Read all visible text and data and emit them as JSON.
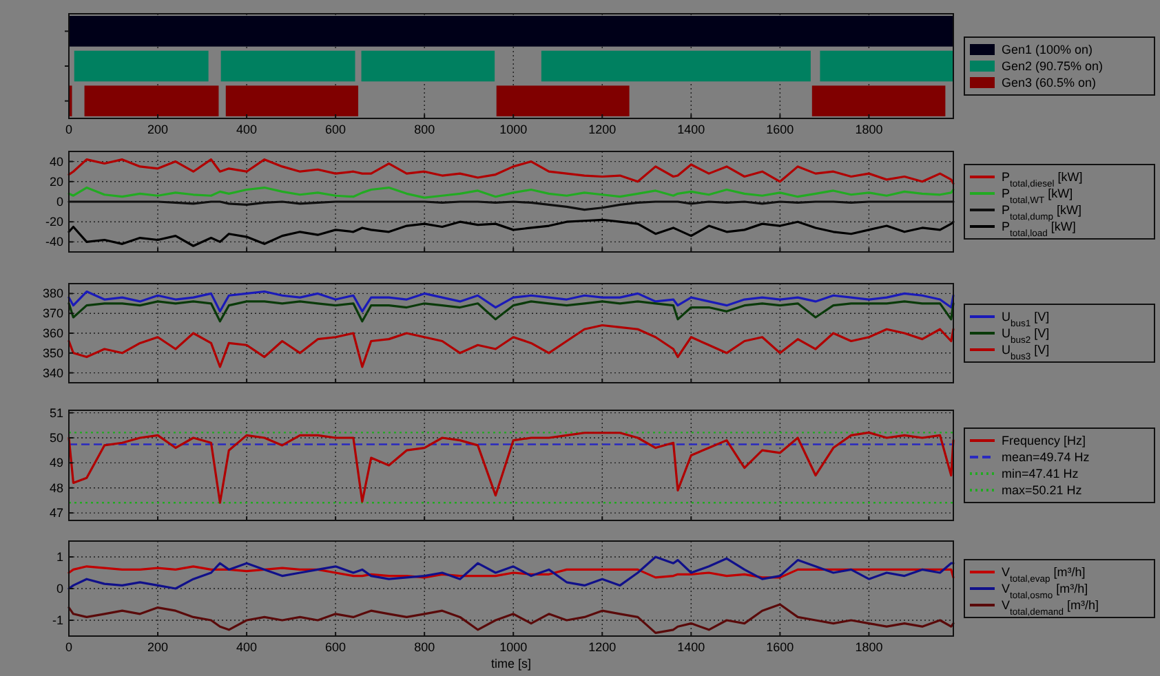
{
  "chart_data": [
    {
      "type": "bar",
      "orientation": "horizontal",
      "categories": [
        null,
        null,
        null
      ],
      "xlim": [
        0,
        1990
      ],
      "xticks": [
        0,
        200,
        400,
        600,
        800,
        1000,
        1200,
        1400,
        1600,
        1800
      ],
      "grid": "x",
      "tick_labels": "x",
      "legend": "right",
      "series": [
        {
          "name": "Gen1 (100% on)",
          "color": "#000018",
          "values": [
            1990,
            null,
            null
          ],
          "base": [
            0,
            null,
            null
          ]
        },
        {
          "name": "Gen2 (90.75% on)",
          "color": "#008060",
          "values": [
            null,
            302,
            null
          ],
          "base": [
            null,
            12,
            null
          ]
        },
        {
          "color": "#008060",
          "values": [
            null,
            302,
            null
          ],
          "base": [
            null,
            342,
            null
          ]
        },
        {
          "color": "#008060",
          "values": [
            null,
            300,
            null
          ],
          "base": [
            null,
            658,
            null
          ]
        },
        {
          "color": "#008060",
          "values": [
            null,
            606,
            null
          ],
          "base": [
            null,
            1063,
            null
          ]
        },
        {
          "color": "#008060",
          "values": [
            null,
            300,
            null
          ],
          "base": [
            null,
            1690,
            null
          ]
        },
        {
          "name": "Gen3 (60.5% on)",
          "color": "#800000",
          "values": [
            null,
            null,
            7
          ],
          "base": [
            null,
            null,
            0
          ]
        },
        {
          "color": "#800000",
          "values": [
            null,
            null,
            302
          ],
          "base": [
            null,
            null,
            35
          ]
        },
        {
          "color": "#800000",
          "values": [
            null,
            null,
            298
          ],
          "base": [
            null,
            null,
            353
          ]
        },
        {
          "color": "#800000",
          "values": [
            null,
            null,
            299
          ],
          "base": [
            null,
            null,
            962
          ]
        },
        {
          "color": "#800000",
          "values": [
            null,
            null,
            300
          ],
          "base": [
            null,
            null,
            1672
          ]
        }
      ]
    },
    {
      "type": "line",
      "x": [
        0,
        10,
        40,
        80,
        120,
        160,
        200,
        240,
        280,
        320,
        340,
        360,
        400,
        440,
        480,
        520,
        560,
        600,
        640,
        660,
        680,
        720,
        760,
        800,
        840,
        880,
        920,
        960,
        1000,
        1040,
        1080,
        1120,
        1160,
        1200,
        1240,
        1280,
        1320,
        1360,
        1370,
        1400,
        1440,
        1480,
        1520,
        1560,
        1600,
        1640,
        1680,
        1720,
        1760,
        1800,
        1840,
        1880,
        1920,
        1960,
        1985,
        1990
      ],
      "xlim": [
        0,
        1990
      ],
      "xticks": [
        0,
        200,
        400,
        600,
        800,
        1000,
        1200,
        1400,
        1600,
        1800
      ],
      "ylim": [
        -50,
        50
      ],
      "yticks": [
        -40,
        -20,
        0,
        20,
        40
      ],
      "grid": true,
      "tick_labels": "y",
      "legend": "right",
      "series": [
        {
          "name": "P$_{total,diesel}$ [kW]",
          "color": "#b00000",
          "values": [
            27,
            30,
            42,
            38,
            42,
            35,
            33,
            40,
            30,
            42,
            30,
            33,
            30,
            42,
            35,
            30,
            32,
            28,
            30,
            28,
            28,
            38,
            28,
            30,
            26,
            28,
            24,
            27,
            35,
            40,
            30,
            28,
            26,
            25,
            26,
            20,
            35,
            25,
            26,
            37,
            28,
            35,
            25,
            30,
            20,
            35,
            28,
            30,
            25,
            28,
            22,
            25,
            20,
            28,
            22,
            18
          ]
        },
        {
          "name": "P$_{total,WT}$ [kW]",
          "color": "#22aa22",
          "values": [
            8,
            6,
            14,
            7,
            5,
            8,
            6,
            9,
            7,
            6,
            10,
            8,
            12,
            14,
            10,
            7,
            9,
            6,
            5,
            9,
            12,
            14,
            8,
            4,
            6,
            8,
            11,
            5,
            9,
            12,
            8,
            6,
            9,
            7,
            5,
            8,
            11,
            6,
            8,
            10,
            7,
            12,
            8,
            6,
            9,
            5,
            8,
            11,
            7,
            9,
            6,
            10,
            8,
            7,
            9,
            12
          ]
        },
        {
          "name": "P$_{total,dump}$ [kW]",
          "color": "#101010",
          "values": [
            0,
            0,
            0,
            0,
            0,
            0,
            0,
            -1,
            -2,
            0,
            0,
            -2,
            -3,
            -1,
            0,
            -2,
            -1,
            0,
            0,
            0,
            0,
            0,
            0,
            0,
            -1,
            0,
            0,
            -1,
            0,
            -1,
            -3,
            -5,
            -8,
            -6,
            -3,
            -1,
            0,
            0,
            0,
            -2,
            0,
            -1,
            0,
            -2,
            0,
            -1,
            0,
            0,
            -1,
            0,
            0,
            0,
            0,
            0,
            0,
            0
          ]
        },
        {
          "name": "P$_{total,load}$ [kW]",
          "color": "#000000",
          "values": [
            -30,
            -25,
            -40,
            -38,
            -42,
            -36,
            -38,
            -34,
            -44,
            -36,
            -40,
            -32,
            -35,
            -42,
            -34,
            -30,
            -33,
            -28,
            -30,
            -26,
            -28,
            -30,
            -24,
            -22,
            -25,
            -20,
            -23,
            -22,
            -28,
            -26,
            -24,
            -20,
            -19,
            -18,
            -20,
            -22,
            -32,
            -26,
            -28,
            -34,
            -24,
            -30,
            -28,
            -22,
            -24,
            -20,
            -26,
            -30,
            -32,
            -28,
            -24,
            -30,
            -26,
            -28,
            -22,
            -20
          ]
        }
      ]
    },
    {
      "type": "line",
      "x": [
        0,
        10,
        40,
        80,
        120,
        160,
        200,
        240,
        280,
        320,
        340,
        360,
        400,
        440,
        480,
        520,
        560,
        600,
        640,
        660,
        680,
        720,
        760,
        800,
        840,
        880,
        920,
        960,
        1000,
        1040,
        1080,
        1120,
        1160,
        1200,
        1240,
        1280,
        1320,
        1360,
        1370,
        1400,
        1440,
        1480,
        1520,
        1560,
        1600,
        1640,
        1680,
        1720,
        1760,
        1800,
        1840,
        1880,
        1920,
        1960,
        1985,
        1990
      ],
      "xlim": [
        0,
        1990
      ],
      "xticks": [
        0,
        200,
        400,
        600,
        800,
        1000,
        1200,
        1400,
        1600,
        1800
      ],
      "ylim": [
        335,
        385
      ],
      "yticks": [
        340,
        350,
        360,
        370,
        380
      ],
      "grid": true,
      "tick_labels": "y",
      "legend": "right",
      "series": [
        {
          "name": "U$_{bus1}$ [V]",
          "color": "#1a1ab8",
          "values": [
            378,
            374,
            381,
            377,
            378,
            376,
            379,
            377,
            378,
            380,
            371,
            379,
            380,
            381,
            379,
            378,
            380,
            377,
            379,
            371,
            378,
            378,
            377,
            380,
            378,
            376,
            379,
            373,
            378,
            379,
            378,
            377,
            379,
            378,
            378,
            380,
            376,
            377,
            374,
            378,
            376,
            374,
            377,
            378,
            377,
            378,
            376,
            379,
            378,
            377,
            378,
            380,
            379,
            377,
            373,
            379
          ]
        },
        {
          "name": "U$_{bus2}$ [V]",
          "color": "#0a3a0a",
          "values": [
            375,
            368,
            374,
            375,
            375,
            374,
            376,
            375,
            376,
            375,
            366,
            374,
            376,
            376,
            375,
            376,
            375,
            374,
            375,
            366,
            374,
            374,
            373,
            375,
            374,
            373,
            375,
            367,
            374,
            376,
            375,
            374,
            375,
            376,
            375,
            376,
            375,
            374,
            367,
            373,
            373,
            371,
            374,
            375,
            374,
            375,
            368,
            374,
            375,
            375,
            375,
            376,
            375,
            375,
            367,
            375
          ]
        },
        {
          "name": "U$_{bus3}$ [V]",
          "color": "#b00000",
          "values": [
            356,
            350,
            348,
            352,
            350,
            355,
            358,
            352,
            360,
            355,
            343,
            355,
            354,
            348,
            356,
            350,
            357,
            358,
            360,
            343,
            356,
            357,
            360,
            358,
            356,
            350,
            354,
            352,
            358,
            355,
            350,
            356,
            362,
            364,
            363,
            362,
            358,
            352,
            348,
            358,
            354,
            350,
            356,
            358,
            350,
            357,
            352,
            360,
            356,
            358,
            362,
            360,
            357,
            362,
            356,
            362
          ]
        }
      ]
    },
    {
      "type": "line",
      "x": [
        0,
        10,
        40,
        80,
        120,
        160,
        200,
        240,
        280,
        320,
        340,
        360,
        400,
        440,
        480,
        520,
        560,
        600,
        640,
        660,
        680,
        720,
        760,
        800,
        840,
        880,
        920,
        960,
        1000,
        1040,
        1080,
        1120,
        1160,
        1200,
        1240,
        1280,
        1320,
        1360,
        1370,
        1400,
        1440,
        1480,
        1520,
        1560,
        1600,
        1640,
        1680,
        1720,
        1760,
        1800,
        1840,
        1880,
        1920,
        1960,
        1985,
        1990
      ],
      "xlim": [
        0,
        1990
      ],
      "xticks": [
        0,
        200,
        400,
        600,
        800,
        1000,
        1200,
        1400,
        1600,
        1800
      ],
      "ylim": [
        46.7,
        51.1
      ],
      "yticks": [
        47,
        48,
        49,
        50,
        51
      ],
      "grid": true,
      "tick_labels": "y",
      "legend": "right",
      "series": [
        {
          "name": "Frequency [Hz]",
          "color": "#b00000",
          "values": [
            50.0,
            48.2,
            48.4,
            49.7,
            49.8,
            50.0,
            50.1,
            49.6,
            50.0,
            49.8,
            47.41,
            49.5,
            50.1,
            50.0,
            49.7,
            50.1,
            50.1,
            50.0,
            50.0,
            47.45,
            49.2,
            48.9,
            49.5,
            49.6,
            50.0,
            49.9,
            49.7,
            47.7,
            49.9,
            50.0,
            50.0,
            50.1,
            50.2,
            50.2,
            50.2,
            50.0,
            49.6,
            49.8,
            47.9,
            49.3,
            49.6,
            49.9,
            48.8,
            49.5,
            49.4,
            50.0,
            48.5,
            49.6,
            50.1,
            50.21,
            50.0,
            50.1,
            50.0,
            50.1,
            48.5,
            49.9
          ]
        }
      ],
      "ref_lines": [
        {
          "axis": "y",
          "value": 49.74,
          "label": "mean=49.74 Hz",
          "color": "#2a2ac0",
          "line_style": "dashed"
        },
        {
          "axis": "y",
          "value": 47.41,
          "label": "min=47.41 Hz",
          "color": "#22aa22",
          "line_style": "dotted"
        },
        {
          "axis": "y",
          "value": 50.21,
          "label": "max=50.21 Hz",
          "color": "#22aa22",
          "line_style": "dotted"
        }
      ]
    },
    {
      "type": "line",
      "x": [
        0,
        10,
        40,
        80,
        120,
        160,
        200,
        240,
        280,
        320,
        340,
        360,
        400,
        440,
        480,
        520,
        560,
        600,
        640,
        660,
        680,
        720,
        760,
        800,
        840,
        880,
        920,
        960,
        1000,
        1040,
        1080,
        1120,
        1160,
        1200,
        1240,
        1280,
        1320,
        1360,
        1370,
        1400,
        1440,
        1480,
        1520,
        1560,
        1600,
        1640,
        1680,
        1720,
        1760,
        1800,
        1840,
        1880,
        1920,
        1960,
        1985,
        1990
      ],
      "xlim": [
        0,
        1990
      ],
      "xticks": [
        0,
        200,
        400,
        600,
        800,
        1000,
        1200,
        1400,
        1600,
        1800
      ],
      "ylim": [
        -1.5,
        1.5
      ],
      "yticks": [
        -1,
        0,
        1
      ],
      "grid": true,
      "xlabel": "time [s]",
      "legend": "right",
      "series": [
        {
          "name": "V$_{total,evap}$ [m³/h]",
          "color": "#c00000",
          "values": [
            0.5,
            0.6,
            0.7,
            0.65,
            0.6,
            0.6,
            0.65,
            0.6,
            0.7,
            0.6,
            0.6,
            0.6,
            0.55,
            0.6,
            0.65,
            0.6,
            0.6,
            0.5,
            0.4,
            0.4,
            0.45,
            0.4,
            0.4,
            0.35,
            0.45,
            0.4,
            0.4,
            0.4,
            0.5,
            0.45,
            0.45,
            0.6,
            0.6,
            0.6,
            0.6,
            0.6,
            0.35,
            0.4,
            0.45,
            0.45,
            0.5,
            0.4,
            0.45,
            0.35,
            0.35,
            0.6,
            0.6,
            0.6,
            0.6,
            0.6,
            0.6,
            0.6,
            0.6,
            0.6,
            0.6,
            0.35
          ]
        },
        {
          "name": "V$_{total,osmo}$ [m³/h]",
          "color": "#10108a",
          "values": [
            0,
            0.1,
            0.3,
            0.15,
            0.1,
            0.2,
            0.1,
            0.0,
            0.3,
            0.5,
            0.8,
            0.6,
            0.8,
            0.6,
            0.4,
            0.5,
            0.6,
            0.7,
            0.5,
            0.6,
            0.4,
            0.3,
            0.35,
            0.4,
            0.5,
            0.3,
            0.8,
            0.5,
            0.7,
            0.4,
            0.6,
            0.2,
            0.1,
            0.3,
            0.1,
            0.5,
            1.0,
            0.8,
            0.9,
            0.5,
            0.7,
            0.95,
            0.6,
            0.3,
            0.4,
            0.9,
            0.7,
            0.5,
            0.6,
            0.3,
            0.5,
            0.4,
            0.6,
            0.5,
            0.8,
            0.8
          ]
        },
        {
          "name": "V$_{total,demand}$ [m³/h]",
          "color": "#5a0a0a",
          "values": [
            -0.6,
            -0.8,
            -0.9,
            -0.8,
            -0.7,
            -0.8,
            -0.6,
            -0.7,
            -0.9,
            -1.0,
            -1.2,
            -1.3,
            -1.0,
            -0.9,
            -1.0,
            -0.9,
            -1.0,
            -0.8,
            -0.9,
            -0.8,
            -0.7,
            -0.8,
            -0.9,
            -0.8,
            -0.7,
            -0.9,
            -1.3,
            -1.0,
            -0.8,
            -1.1,
            -0.8,
            -1.0,
            -0.9,
            -0.7,
            -0.8,
            -0.9,
            -1.4,
            -1.3,
            -1.2,
            -1.1,
            -1.3,
            -1.0,
            -1.1,
            -0.7,
            -0.5,
            -0.9,
            -1.0,
            -1.1,
            -1.0,
            -1.1,
            -1.2,
            -1.1,
            -1.2,
            -1.0,
            -1.2,
            -1.1
          ]
        }
      ]
    }
  ]
}
